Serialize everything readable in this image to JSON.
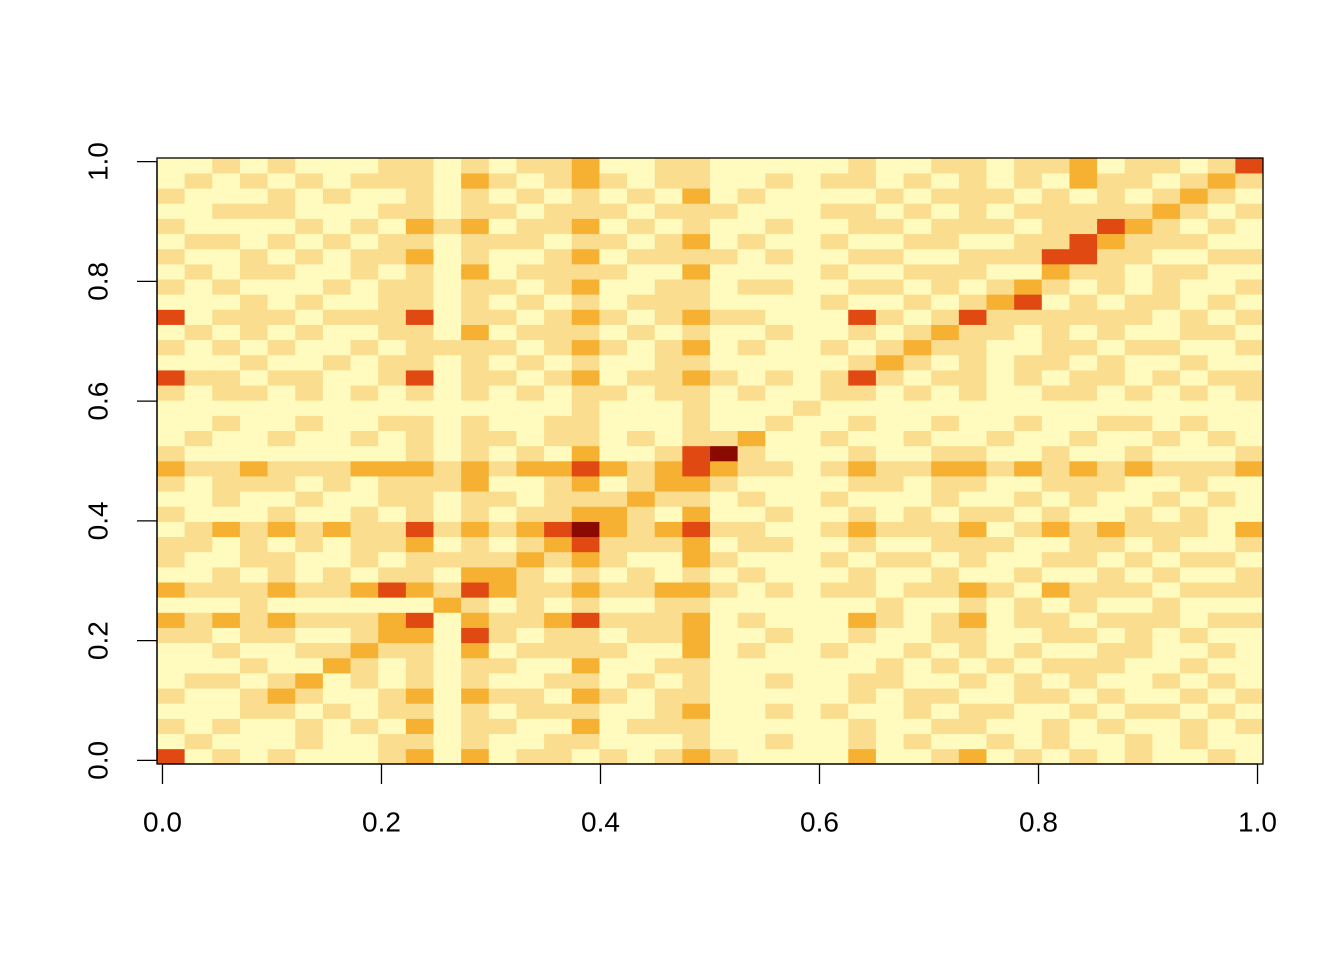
{
  "chart_data": {
    "type": "heatmap",
    "xlim": [
      -0.005,
      1.005
    ],
    "ylim": [
      -0.006,
      1.006
    ],
    "xticks": [
      {
        "value": 0,
        "label": "0.0"
      },
      0.2,
      0.4,
      0.6,
      0.8,
      {
        "value": 1,
        "label": "1.0"
      }
    ],
    "yticks": [
      {
        "value": 0,
        "label": "0.0"
      },
      0.2,
      0.4,
      0.6,
      0.8,
      {
        "value": 1,
        "label": "1.0"
      }
    ],
    "colors": [
      "#FFFBBE",
      "#FADD8F",
      "#F6B133",
      "#E04A12",
      "#8B0A00"
    ],
    "z": [
      [
        3,
        0,
        1,
        0,
        1,
        0,
        0,
        0,
        1,
        2,
        0,
        2,
        0,
        1,
        1,
        0,
        1,
        0,
        1,
        2,
        1,
        0,
        0,
        0,
        0,
        2,
        0,
        0,
        1,
        2,
        0,
        1,
        0,
        1,
        0,
        1,
        0,
        0,
        1,
        0
      ],
      [
        0,
        1,
        0,
        0,
        0,
        1,
        0,
        0,
        1,
        1,
        0,
        1,
        0,
        0,
        1,
        1,
        0,
        0,
        0,
        1,
        0,
        0,
        1,
        0,
        0,
        1,
        0,
        1,
        0,
        0,
        1,
        0,
        1,
        0,
        0,
        1,
        0,
        1,
        0,
        0
      ],
      [
        1,
        0,
        1,
        0,
        0,
        1,
        0,
        1,
        0,
        2,
        0,
        1,
        1,
        0,
        0,
        2,
        0,
        1,
        1,
        1,
        0,
        0,
        0,
        0,
        0,
        1,
        0,
        0,
        1,
        1,
        0,
        0,
        1,
        0,
        1,
        0,
        0,
        1,
        0,
        1
      ],
      [
        0,
        0,
        0,
        1,
        1,
        0,
        1,
        0,
        1,
        1,
        0,
        1,
        0,
        1,
        1,
        1,
        0,
        0,
        1,
        2,
        0,
        0,
        1,
        0,
        1,
        0,
        0,
        1,
        0,
        1,
        1,
        0,
        0,
        1,
        0,
        1,
        1,
        0,
        1,
        0
      ],
      [
        1,
        0,
        0,
        1,
        2,
        1,
        0,
        0,
        1,
        2,
        0,
        2,
        1,
        1,
        0,
        2,
        1,
        0,
        1,
        1,
        0,
        0,
        0,
        0,
        0,
        1,
        0,
        1,
        1,
        0,
        0,
        1,
        1,
        0,
        1,
        0,
        0,
        1,
        0,
        1
      ],
      [
        0,
        1,
        1,
        0,
        1,
        2,
        0,
        1,
        0,
        1,
        0,
        1,
        0,
        0,
        1,
        1,
        0,
        1,
        0,
        1,
        0,
        0,
        1,
        0,
        0,
        1,
        1,
        0,
        0,
        1,
        0,
        1,
        0,
        1,
        0,
        0,
        1,
        0,
        1,
        0
      ],
      [
        0,
        0,
        0,
        1,
        0,
        0,
        2,
        1,
        0,
        1,
        0,
        1,
        1,
        0,
        0,
        2,
        0,
        0,
        1,
        1,
        0,
        0,
        0,
        0,
        0,
        0,
        1,
        0,
        1,
        0,
        1,
        0,
        1,
        1,
        1,
        0,
        0,
        1,
        0,
        0
      ],
      [
        0,
        0,
        1,
        0,
        0,
        1,
        1,
        2,
        1,
        1,
        0,
        2,
        0,
        1,
        1,
        1,
        1,
        0,
        0,
        2,
        0,
        1,
        0,
        0,
        1,
        0,
        0,
        1,
        0,
        1,
        0,
        1,
        0,
        0,
        1,
        1,
        0,
        0,
        1,
        0
      ],
      [
        1,
        1,
        0,
        1,
        1,
        0,
        0,
        1,
        2,
        2,
        0,
        3,
        1,
        0,
        1,
        1,
        0,
        1,
        1,
        2,
        0,
        0,
        1,
        0,
        0,
        1,
        0,
        0,
        1,
        1,
        0,
        0,
        1,
        1,
        0,
        1,
        0,
        1,
        0,
        0
      ],
      [
        2,
        1,
        2,
        1,
        2,
        1,
        1,
        1,
        2,
        3,
        0,
        2,
        1,
        1,
        2,
        3,
        1,
        1,
        1,
        2,
        0,
        1,
        0,
        0,
        0,
        2,
        1,
        0,
        1,
        2,
        0,
        1,
        1,
        0,
        1,
        1,
        1,
        0,
        1,
        1
      ],
      [
        0,
        0,
        0,
        1,
        0,
        0,
        0,
        0,
        0,
        0,
        2,
        1,
        0,
        1,
        0,
        1,
        0,
        0,
        1,
        1,
        0,
        0,
        0,
        0,
        0,
        0,
        1,
        0,
        0,
        1,
        0,
        1,
        0,
        1,
        0,
        0,
        1,
        0,
        0,
        0
      ],
      [
        2,
        1,
        1,
        1,
        2,
        1,
        1,
        2,
        3,
        2,
        1,
        3,
        2,
        1,
        1,
        2,
        1,
        1,
        2,
        2,
        1,
        0,
        1,
        0,
        1,
        1,
        0,
        1,
        1,
        2,
        1,
        0,
        2,
        1,
        1,
        1,
        0,
        1,
        1,
        1
      ],
      [
        0,
        0,
        1,
        0,
        1,
        0,
        1,
        0,
        1,
        1,
        0,
        2,
        2,
        1,
        0,
        1,
        0,
        1,
        0,
        1,
        0,
        1,
        0,
        0,
        0,
        1,
        0,
        0,
        1,
        0,
        0,
        1,
        0,
        0,
        1,
        0,
        1,
        0,
        0,
        1
      ],
      [
        1,
        0,
        0,
        1,
        1,
        0,
        0,
        1,
        0,
        1,
        1,
        1,
        1,
        2,
        1,
        2,
        1,
        0,
        0,
        2,
        1,
        0,
        0,
        0,
        1,
        0,
        1,
        1,
        0,
        1,
        0,
        0,
        1,
        1,
        0,
        1,
        0,
        1,
        1,
        0
      ],
      [
        1,
        1,
        0,
        1,
        0,
        1,
        0,
        1,
        1,
        2,
        0,
        1,
        0,
        1,
        2,
        3,
        1,
        1,
        1,
        2,
        0,
        1,
        1,
        0,
        0,
        1,
        0,
        0,
        1,
        1,
        1,
        0,
        0,
        1,
        1,
        0,
        1,
        0,
        0,
        1
      ],
      [
        0,
        1,
        2,
        1,
        2,
        1,
        2,
        1,
        1,
        3,
        1,
        2,
        1,
        2,
        3,
        4,
        2,
        1,
        2,
        3,
        1,
        1,
        0,
        0,
        1,
        2,
        1,
        1,
        1,
        2,
        0,
        1,
        2,
        1,
        2,
        1,
        1,
        1,
        0,
        2
      ],
      [
        1,
        0,
        0,
        0,
        1,
        0,
        0,
        1,
        0,
        1,
        0,
        1,
        0,
        1,
        1,
        2,
        2,
        1,
        0,
        2,
        0,
        0,
        1,
        0,
        0,
        1,
        0,
        1,
        0,
        1,
        1,
        0,
        1,
        0,
        0,
        1,
        0,
        1,
        0,
        0
      ],
      [
        0,
        0,
        1,
        0,
        0,
        1,
        0,
        0,
        1,
        1,
        0,
        1,
        1,
        0,
        1,
        1,
        1,
        2,
        1,
        1,
        0,
        1,
        0,
        0,
        1,
        0,
        0,
        0,
        1,
        0,
        0,
        1,
        0,
        1,
        0,
        0,
        1,
        0,
        1,
        0
      ],
      [
        1,
        0,
        1,
        1,
        1,
        0,
        1,
        0,
        1,
        1,
        1,
        2,
        0,
        0,
        1,
        2,
        0,
        1,
        2,
        2,
        1,
        0,
        0,
        0,
        0,
        1,
        1,
        0,
        1,
        1,
        0,
        0,
        1,
        1,
        1,
        0,
        0,
        1,
        0,
        0
      ],
      [
        2,
        1,
        1,
        2,
        1,
        1,
        1,
        2,
        2,
        2,
        1,
        2,
        1,
        2,
        2,
        3,
        2,
        1,
        2,
        3,
        2,
        1,
        1,
        0,
        1,
        2,
        1,
        1,
        2,
        2,
        1,
        2,
        1,
        2,
        1,
        2,
        1,
        1,
        1,
        2
      ],
      [
        1,
        0,
        0,
        0,
        0,
        0,
        0,
        0,
        0,
        1,
        0,
        1,
        0,
        1,
        0,
        2,
        0,
        0,
        1,
        3,
        4,
        1,
        0,
        0,
        0,
        1,
        0,
        0,
        1,
        1,
        0,
        0,
        1,
        0,
        0,
        1,
        0,
        0,
        0,
        1
      ],
      [
        0,
        1,
        0,
        0,
        1,
        0,
        0,
        1,
        0,
        1,
        0,
        1,
        1,
        0,
        1,
        1,
        0,
        1,
        0,
        1,
        1,
        2,
        0,
        0,
        1,
        0,
        0,
        1,
        0,
        0,
        1,
        0,
        0,
        1,
        0,
        0,
        1,
        0,
        1,
        0
      ],
      [
        0,
        0,
        1,
        0,
        0,
        1,
        0,
        0,
        1,
        1,
        0,
        1,
        0,
        0,
        1,
        1,
        0,
        0,
        0,
        1,
        0,
        0,
        1,
        0,
        0,
        1,
        0,
        0,
        1,
        0,
        0,
        1,
        0,
        0,
        1,
        1,
        0,
        1,
        0,
        0
      ],
      [
        0,
        0,
        0,
        0,
        0,
        0,
        0,
        0,
        0,
        0,
        0,
        0,
        0,
        0,
        0,
        1,
        0,
        0,
        0,
        1,
        0,
        0,
        0,
        1,
        0,
        0,
        0,
        0,
        0,
        0,
        0,
        0,
        0,
        0,
        0,
        0,
        0,
        0,
        0,
        0
      ],
      [
        1,
        0,
        1,
        1,
        0,
        1,
        0,
        1,
        0,
        1,
        0,
        1,
        0,
        1,
        0,
        1,
        1,
        0,
        1,
        1,
        0,
        1,
        0,
        0,
        1,
        1,
        0,
        1,
        0,
        1,
        0,
        0,
        1,
        1,
        0,
        1,
        0,
        1,
        0,
        1
      ],
      [
        3,
        1,
        1,
        0,
        1,
        1,
        0,
        0,
        1,
        3,
        0,
        1,
        1,
        0,
        1,
        2,
        0,
        1,
        1,
        2,
        1,
        0,
        1,
        0,
        1,
        3,
        1,
        0,
        1,
        1,
        0,
        1,
        0,
        1,
        1,
        0,
        1,
        0,
        1,
        1
      ],
      [
        0,
        0,
        0,
        1,
        0,
        0,
        1,
        0,
        1,
        1,
        0,
        1,
        0,
        1,
        0,
        1,
        0,
        0,
        1,
        1,
        0,
        0,
        0,
        0,
        0,
        1,
        2,
        1,
        0,
        1,
        0,
        1,
        1,
        0,
        1,
        0,
        0,
        1,
        0,
        0
      ],
      [
        1,
        0,
        1,
        0,
        1,
        0,
        0,
        1,
        0,
        1,
        1,
        1,
        1,
        0,
        1,
        2,
        1,
        0,
        1,
        2,
        0,
        1,
        0,
        0,
        1,
        0,
        1,
        2,
        1,
        1,
        0,
        0,
        1,
        1,
        0,
        1,
        1,
        0,
        0,
        1
      ],
      [
        0,
        1,
        0,
        1,
        0,
        1,
        0,
        0,
        1,
        1,
        0,
        2,
        0,
        1,
        1,
        1,
        0,
        1,
        0,
        1,
        0,
        0,
        1,
        0,
        0,
        1,
        0,
        1,
        2,
        1,
        1,
        0,
        1,
        0,
        1,
        0,
        0,
        1,
        1,
        0
      ],
      [
        3,
        0,
        1,
        1,
        1,
        0,
        1,
        1,
        1,
        3,
        0,
        1,
        1,
        0,
        1,
        2,
        1,
        0,
        1,
        2,
        1,
        1,
        0,
        0,
        0,
        3,
        1,
        0,
        1,
        3,
        1,
        1,
        1,
        1,
        1,
        1,
        0,
        1,
        0,
        1
      ],
      [
        0,
        0,
        0,
        1,
        0,
        1,
        0,
        0,
        1,
        1,
        0,
        1,
        0,
        1,
        0,
        1,
        0,
        1,
        1,
        1,
        0,
        0,
        0,
        0,
        1,
        0,
        0,
        1,
        0,
        1,
        2,
        3,
        0,
        1,
        0,
        1,
        1,
        0,
        1,
        0
      ],
      [
        1,
        0,
        1,
        0,
        0,
        0,
        1,
        0,
        1,
        1,
        0,
        1,
        1,
        0,
        1,
        2,
        0,
        0,
        1,
        1,
        0,
        1,
        1,
        0,
        0,
        1,
        1,
        0,
        1,
        0,
        1,
        2,
        1,
        0,
        1,
        0,
        1,
        0,
        0,
        1
      ],
      [
        0,
        1,
        0,
        1,
        1,
        0,
        0,
        1,
        0,
        1,
        0,
        2,
        0,
        1,
        1,
        1,
        1,
        0,
        0,
        2,
        0,
        0,
        0,
        0,
        1,
        0,
        0,
        1,
        1,
        1,
        0,
        0,
        2,
        1,
        1,
        0,
        1,
        1,
        0,
        0
      ],
      [
        1,
        0,
        0,
        1,
        0,
        1,
        0,
        1,
        1,
        2,
        0,
        1,
        0,
        0,
        1,
        2,
        0,
        1,
        1,
        1,
        1,
        0,
        1,
        0,
        0,
        1,
        1,
        0,
        0,
        1,
        1,
        1,
        3,
        3,
        1,
        1,
        0,
        0,
        1,
        1
      ],
      [
        0,
        1,
        1,
        0,
        1,
        0,
        1,
        0,
        1,
        1,
        0,
        1,
        1,
        1,
        0,
        1,
        1,
        0,
        1,
        2,
        0,
        1,
        0,
        0,
        1,
        0,
        0,
        1,
        1,
        0,
        0,
        1,
        1,
        3,
        2,
        1,
        1,
        1,
        0,
        0
      ],
      [
        1,
        0,
        0,
        0,
        0,
        1,
        0,
        1,
        0,
        2,
        1,
        2,
        0,
        1,
        1,
        2,
        0,
        1,
        0,
        1,
        0,
        0,
        1,
        0,
        0,
        1,
        1,
        0,
        1,
        1,
        1,
        0,
        1,
        1,
        3,
        2,
        1,
        0,
        1,
        0
      ],
      [
        0,
        0,
        1,
        1,
        1,
        0,
        0,
        0,
        1,
        1,
        0,
        1,
        1,
        0,
        1,
        1,
        1,
        0,
        1,
        1,
        1,
        0,
        0,
        0,
        1,
        1,
        0,
        1,
        0,
        1,
        0,
        1,
        1,
        1,
        1,
        1,
        2,
        1,
        0,
        1
      ],
      [
        1,
        0,
        0,
        0,
        1,
        0,
        1,
        0,
        0,
        1,
        0,
        1,
        0,
        1,
        0,
        1,
        0,
        1,
        0,
        2,
        0,
        1,
        0,
        0,
        0,
        0,
        1,
        0,
        1,
        1,
        1,
        0,
        1,
        0,
        1,
        0,
        1,
        2,
        1,
        0
      ],
      [
        0,
        1,
        0,
        1,
        0,
        1,
        0,
        1,
        1,
        1,
        0,
        2,
        1,
        0,
        1,
        2,
        1,
        0,
        1,
        1,
        0,
        0,
        1,
        0,
        1,
        1,
        0,
        1,
        0,
        1,
        0,
        1,
        0,
        2,
        1,
        1,
        0,
        1,
        2,
        1
      ],
      [
        0,
        0,
        1,
        0,
        1,
        0,
        0,
        0,
        1,
        1,
        0,
        1,
        0,
        1,
        1,
        2,
        0,
        0,
        1,
        1,
        0,
        0,
        0,
        0,
        0,
        1,
        0,
        0,
        1,
        1,
        0,
        1,
        1,
        2,
        0,
        1,
        1,
        0,
        1,
        3
      ]
    ]
  }
}
